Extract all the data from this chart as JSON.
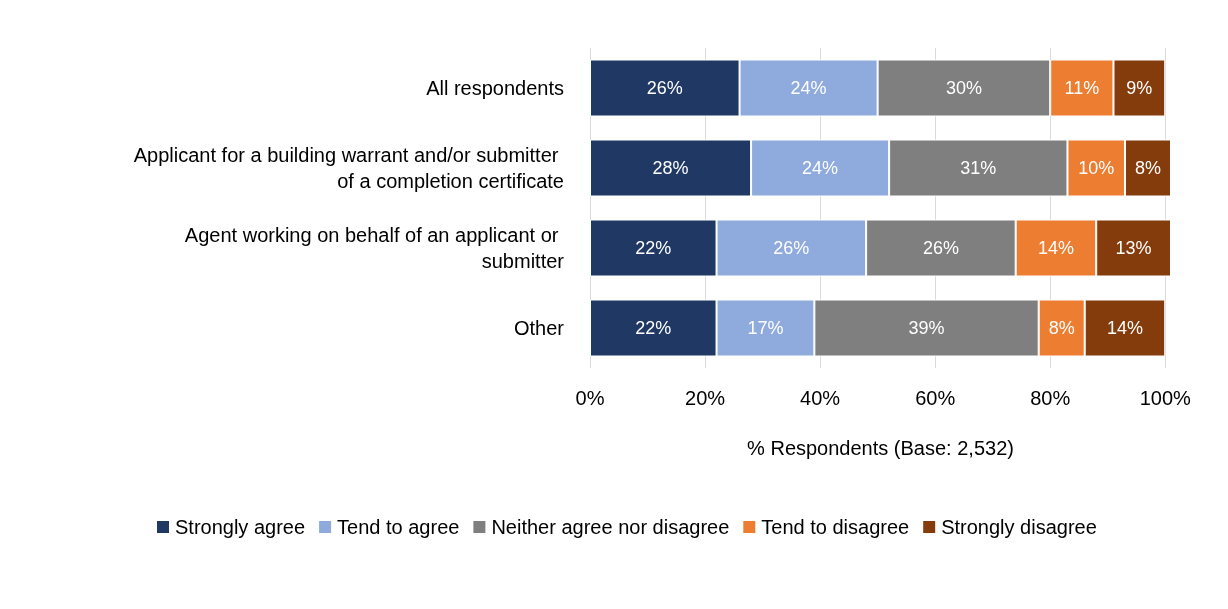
{
  "chart_data": {
    "type": "bar",
    "orientation": "horizontal",
    "stacked": true,
    "xlabel": "% Respondents (Base: 2,532)",
    "categories": [
      "All respondents",
      "Applicant for a building warrant and/or submitter of a completion certificate",
      "Agent working on behalf of an applicant or submitter",
      "Other"
    ],
    "series": [
      {
        "name": "Strongly agree",
        "color": "#203864",
        "values": [
          26,
          28,
          22,
          22
        ],
        "value_labels": [
          "26%",
          "28%",
          "22%",
          "22%"
        ]
      },
      {
        "name": "Tend to agree",
        "color": "#8faadc",
        "values": [
          24,
          24,
          26,
          17
        ],
        "value_labels": [
          "24%",
          "24%",
          "26%",
          "17%"
        ]
      },
      {
        "name": "Neither agree nor disagree",
        "color": "#7f7f7f",
        "values": [
          30,
          31,
          26,
          39
        ],
        "value_labels": [
          "30%",
          "31%",
          "26%",
          "39%"
        ]
      },
      {
        "name": "Tend to disagree",
        "color": "#ed7d31",
        "values": [
          11,
          10,
          14,
          8
        ],
        "value_labels": [
          "11%",
          "10%",
          "14%",
          "8%"
        ]
      },
      {
        "name": "Strongly disagree",
        "color": "#843c0c",
        "values": [
          9,
          8,
          13,
          14
        ],
        "value_labels": [
          "9%",
          "8%",
          "13%",
          "14%"
        ]
      }
    ],
    "xlim": [
      0,
      101
    ],
    "xticks": [
      {
        "value": 0,
        "label": "0%"
      },
      {
        "value": 20,
        "label": "20%"
      },
      {
        "value": 40,
        "label": "40%"
      },
      {
        "value": 60,
        "label": "60%"
      },
      {
        "value": 80,
        "label": "80%"
      },
      {
        "value": 100,
        "label": "100%"
      }
    ],
    "grid": "x",
    "legend": "bottom"
  }
}
